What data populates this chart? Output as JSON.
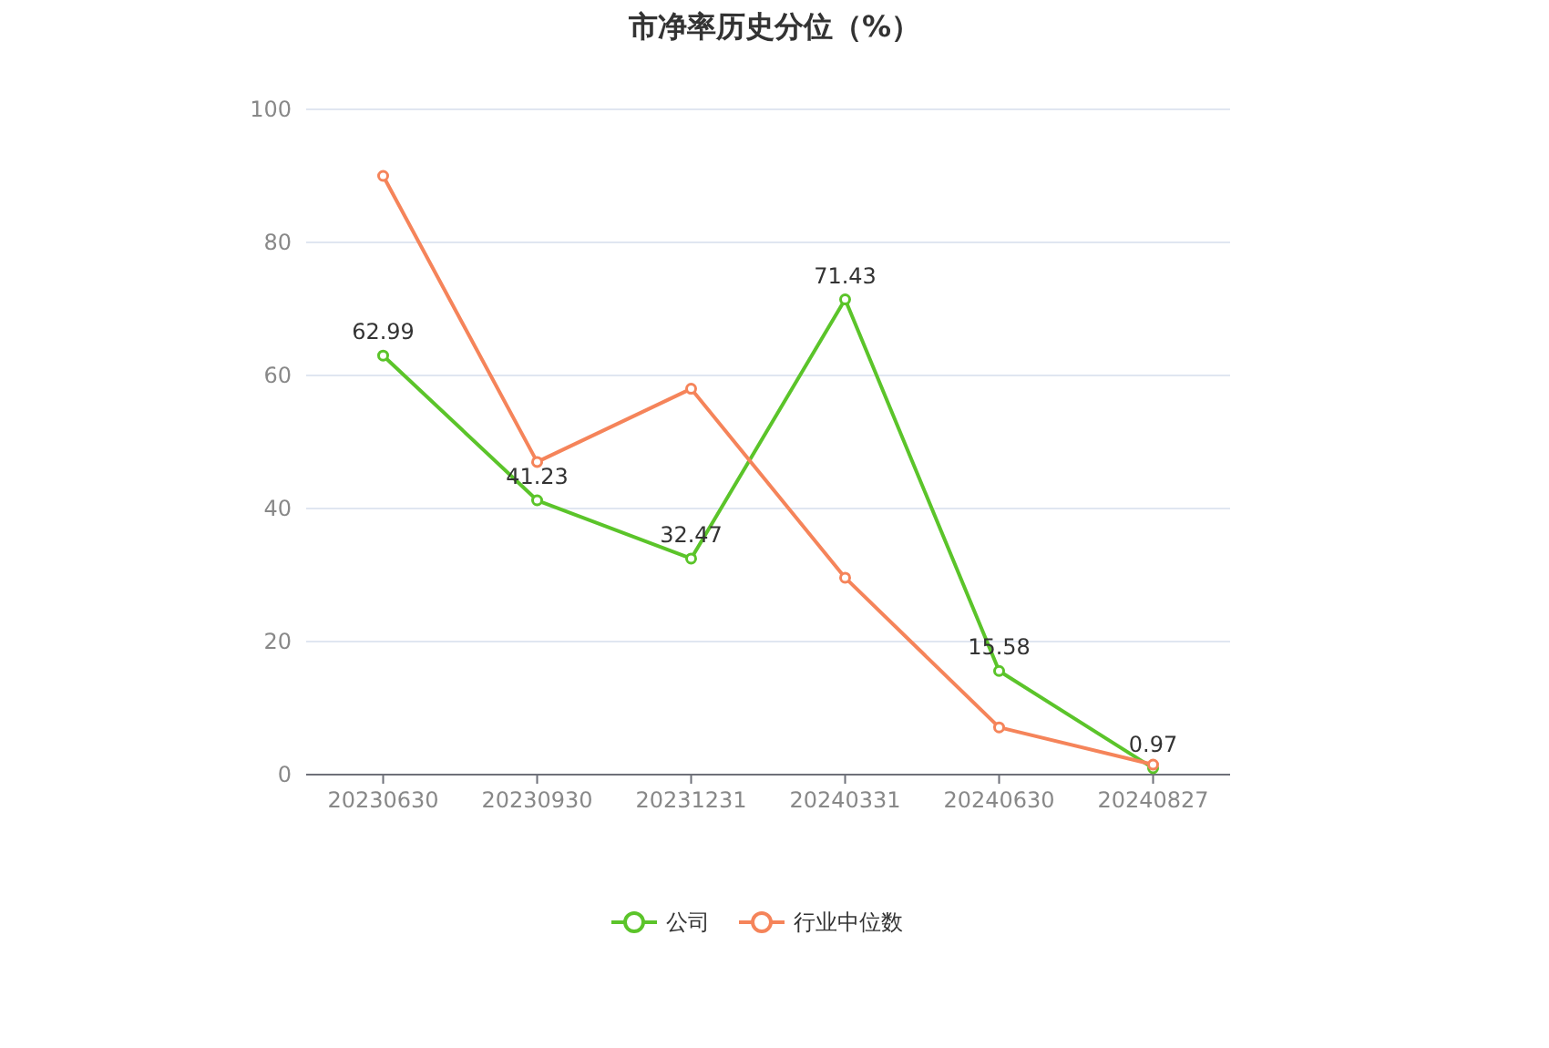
{
  "chart_data": {
    "type": "line",
    "title": "市净率历史分位（%）",
    "categories": [
      "20230630",
      "20230930",
      "20231231",
      "20240331",
      "20240630",
      "20240827"
    ],
    "series": [
      {
        "name": "公司",
        "color": "#5bc42a",
        "values": [
          62.99,
          41.23,
          32.47,
          71.43,
          15.58,
          0.97
        ],
        "value_labels": [
          "62.99",
          "41.23",
          "32.47",
          "71.43",
          "15.58",
          "0.97"
        ]
      },
      {
        "name": "行业中位数",
        "color": "#f5845a",
        "values": [
          90,
          47,
          58,
          29.6,
          7.1,
          1.5
        ]
      }
    ],
    "ylim": [
      0,
      100
    ],
    "yticks": [
      0,
      20,
      40,
      60,
      80,
      100
    ],
    "grid": "y",
    "legend": "bottom",
    "marker": "circle",
    "line_style": "solid"
  }
}
